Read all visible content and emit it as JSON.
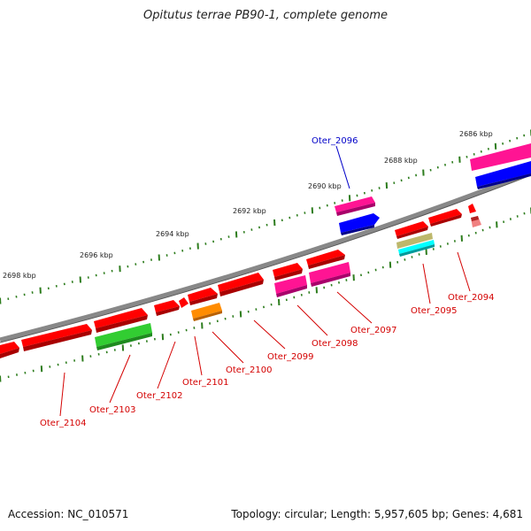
{
  "title": "Opitutus terrae PB90-1, complete genome",
  "footer": {
    "accession": "Accession: NC_010571",
    "summary": "Topology: circular; Length: 5,957,605 bp; Genes: 4,681"
  },
  "colors": {
    "backbone": "#888888",
    "tick": "#2e7d1e",
    "label_red": "#d40000",
    "label_blue": "#0000c8"
  },
  "scale_labels": [
    "2686 kbp",
    "2688 kbp",
    "2690 kbp",
    "2692 kbp",
    "2694 kbp",
    "2696 kbp",
    "2698 kbp"
  ],
  "gene_labels": [
    "Oter_2094",
    "Oter_2095",
    "Oter_2096",
    "Oter_2097",
    "Oter_2098",
    "Oter_2099",
    "Oter_2100",
    "Oter_2101",
    "Oter_2102",
    "Oter_2103",
    "Oter_2104"
  ]
}
